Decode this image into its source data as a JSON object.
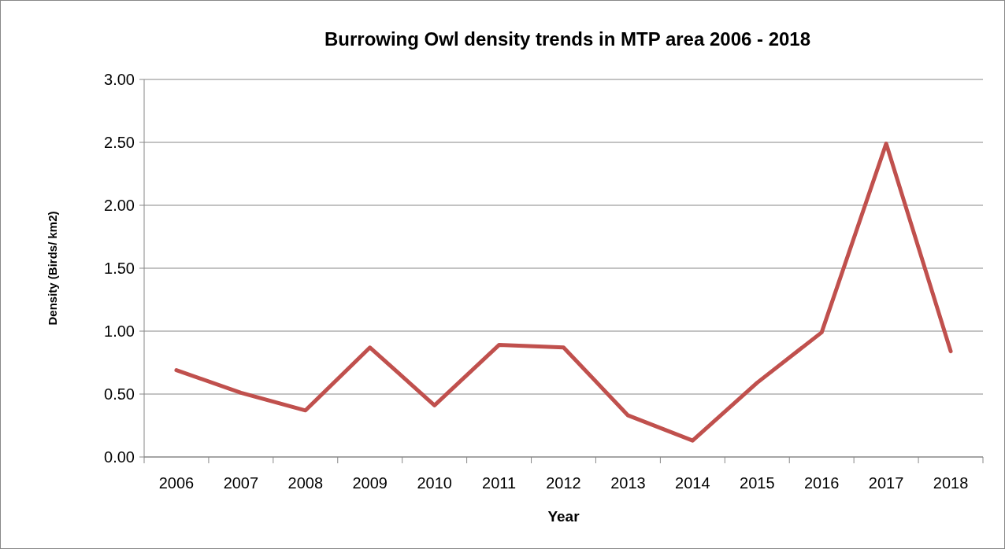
{
  "chart_data": {
    "type": "line",
    "title": "Burrowing Owl density trends in MTP area 2006 - 2018",
    "xlabel": "Year",
    "ylabel": "Density (Birds/ km2)",
    "categories": [
      "2006",
      "2007",
      "2008",
      "2009",
      "2010",
      "2011",
      "2012",
      "2013",
      "2014",
      "2015",
      "2016",
      "2017",
      "2018"
    ],
    "series": [
      {
        "color": "#c0504d",
        "values": [
          0.69,
          0.51,
          0.37,
          0.87,
          0.41,
          0.89,
          0.87,
          0.33,
          0.13,
          0.59,
          0.99,
          2.49,
          0.84
        ]
      }
    ],
    "ylim": [
      0,
      3
    ],
    "yticks": [
      {
        "value": 0,
        "label": "0.00"
      },
      {
        "value": 0.5,
        "label": "0.50"
      },
      {
        "value": 1,
        "label": "1.00"
      },
      {
        "value": 1.5,
        "label": "1.50"
      },
      {
        "value": 2,
        "label": "2.00"
      },
      {
        "value": 2.5,
        "label": "2.50"
      },
      {
        "value": 3,
        "label": "3.00"
      }
    ],
    "grid": "y",
    "marker": "none",
    "line_style": "solid"
  }
}
